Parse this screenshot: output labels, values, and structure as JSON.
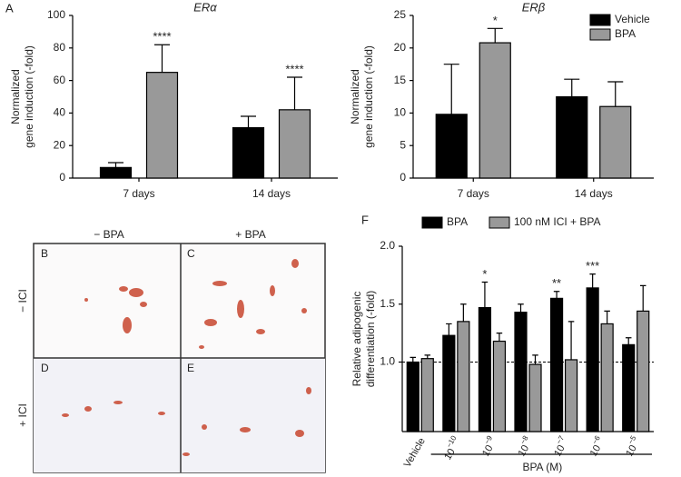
{
  "figure": {
    "panel_labels": [
      "A",
      "F"
    ],
    "micrograph": {
      "columns": [
        "− BPA",
        "+ BPA"
      ],
      "rows": [
        "− ICI",
        "+ ICI"
      ],
      "panels": [
        "B",
        "C",
        "D",
        "E"
      ]
    }
  },
  "chart_data": [
    {
      "type": "bar",
      "title": "ERα",
      "ylabel": [
        "Normalized",
        "gene induction (-fold)"
      ],
      "categories": [
        "7 days",
        "14 days"
      ],
      "series": [
        {
          "name": "Vehicle",
          "color": "#000000",
          "values": [
            6.5,
            31
          ],
          "errors": [
            3,
            7
          ]
        },
        {
          "name": "BPA",
          "color": "#999999",
          "values": [
            65,
            42
          ],
          "errors": [
            17,
            20
          ],
          "annotations": [
            "****",
            "****"
          ]
        }
      ],
      "ylim": [
        0,
        100
      ],
      "yticks": [
        0,
        20,
        40,
        60,
        80,
        100
      ]
    },
    {
      "type": "bar",
      "title": "ERβ",
      "ylabel": [
        "Normalized",
        "gene induction (-fold)"
      ],
      "categories": [
        "7 days",
        "14 days"
      ],
      "series": [
        {
          "name": "Vehicle",
          "color": "#000000",
          "values": [
            9.8,
            12.5
          ],
          "errors": [
            7.7,
            2.7
          ]
        },
        {
          "name": "BPA",
          "color": "#999999",
          "values": [
            20.8,
            11
          ],
          "errors": [
            2.2,
            3.8
          ],
          "annotations": [
            "*",
            null
          ]
        }
      ],
      "ylim": [
        0,
        25
      ],
      "yticks": [
        0,
        5,
        10,
        15,
        20,
        25
      ],
      "legend": "top-right"
    },
    {
      "type": "bar",
      "ylabel": [
        "Relative adipogenic",
        "differentiation (-fold)"
      ],
      "xlabel": "BPA (M)",
      "categories": [
        "Vehicle",
        "10−10",
        "10−9",
        "10−8",
        "10−7",
        "10−6",
        "10−5"
      ],
      "series": [
        {
          "name": "BPA",
          "color": "#000000",
          "values": [
            1.0,
            1.23,
            1.47,
            1.43,
            1.55,
            1.64,
            1.15
          ],
          "errors": [
            0.04,
            0.1,
            0.22,
            0.07,
            0.06,
            0.12,
            0.06
          ],
          "annotations": [
            null,
            null,
            "*",
            null,
            "**",
            "***",
            null
          ]
        },
        {
          "name": "100 nM ICI + BPA",
          "color": "#999999",
          "values": [
            1.03,
            1.35,
            1.18,
            0.98,
            1.02,
            1.33,
            1.44
          ],
          "errors": [
            0.03,
            0.15,
            0.07,
            0.08,
            0.33,
            0.11,
            0.22
          ]
        }
      ],
      "ylim": [
        0.4,
        2.0
      ],
      "yticks": [
        {
          "value": 1.0,
          "label": "1.0"
        },
        {
          "value": 1.5,
          "label": "1.5"
        },
        {
          "value": 2.0,
          "label": "2.0"
        }
      ],
      "grid_lines": [
        {
          "value": 1.0,
          "style": "dashed"
        }
      ],
      "legend": "top"
    }
  ]
}
